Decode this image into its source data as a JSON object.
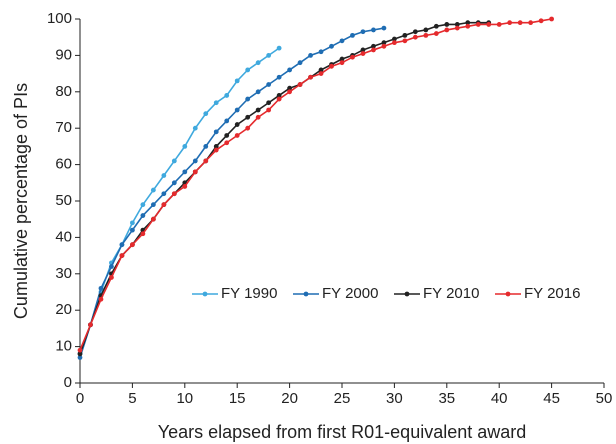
{
  "chart_data": {
    "type": "line",
    "x_label": "Years elapsed from first R01-equivalent award",
    "y_label": "Cumulative percentage of PIs",
    "x": [
      0,
      1,
      2,
      3,
      4,
      5,
      6,
      7,
      8,
      9,
      10,
      11,
      12,
      13,
      14,
      15,
      16,
      17,
      18,
      19,
      20,
      21,
      22,
      23,
      24,
      25,
      26,
      27,
      28,
      29,
      30,
      31,
      32,
      33,
      34,
      35,
      36,
      37,
      38,
      39,
      40,
      41,
      42,
      43,
      44,
      45
    ],
    "xlim": [
      0,
      50
    ],
    "xticks": [
      0,
      5,
      10,
      15,
      20,
      25,
      30,
      35,
      40,
      45,
      50
    ],
    "ylim": [
      0,
      100
    ],
    "yticks": [
      0,
      10,
      20,
      30,
      40,
      50,
      60,
      70,
      80,
      90,
      100
    ],
    "grid": false,
    "legend": "inside",
    "series": [
      {
        "name": "FY 1990",
        "color": "#3fa9de",
        "values": [
          8,
          16,
          25,
          33,
          38,
          44,
          49,
          53,
          57,
          61,
          65,
          70,
          74,
          77,
          79,
          83,
          86,
          88,
          90,
          92,
          null,
          null,
          null,
          null,
          null,
          null,
          null,
          null,
          null,
          null,
          null,
          null,
          null,
          null,
          null,
          null,
          null,
          null,
          null,
          null,
          null,
          null,
          null,
          null,
          null,
          null
        ]
      },
      {
        "name": "FY 2000",
        "color": "#1f6db3",
        "values": [
          7,
          16,
          26,
          32,
          38,
          42,
          46,
          49,
          52,
          55,
          58,
          61,
          65,
          69,
          72,
          75,
          78,
          80,
          82,
          84,
          86,
          88,
          90,
          91,
          92.5,
          94,
          95.5,
          96.5,
          97,
          97.5,
          null,
          null,
          null,
          null,
          null,
          null,
          null,
          null,
          null,
          null,
          null,
          null,
          null,
          null,
          null,
          null
        ]
      },
      {
        "name": "FY 2010",
        "color": "#222222",
        "values": [
          8,
          16,
          24,
          30,
          35,
          38,
          42,
          45,
          49,
          52,
          55,
          58,
          61,
          65,
          68,
          71,
          73,
          75,
          77,
          79,
          81,
          82,
          84,
          86,
          87.5,
          89,
          90,
          91.5,
          92.5,
          93.5,
          94.5,
          95.5,
          96.5,
          97,
          98,
          98.5,
          98.5,
          99,
          99,
          99,
          null,
          null,
          null,
          null,
          null,
          null
        ]
      },
      {
        "name": "FY 2016",
        "color": "#e52a2d",
        "values": [
          9,
          16,
          23,
          29,
          35,
          38,
          41,
          45,
          49,
          52,
          54,
          58,
          61,
          64,
          66,
          68,
          70,
          73,
          75,
          78,
          80,
          82,
          84,
          85,
          87,
          88,
          89.5,
          90.5,
          91.5,
          92.5,
          93.5,
          94,
          95,
          95.5,
          96,
          97,
          97.5,
          98,
          98.5,
          98.5,
          98.5,
          99,
          99,
          99,
          99.5,
          100
        ]
      }
    ]
  }
}
